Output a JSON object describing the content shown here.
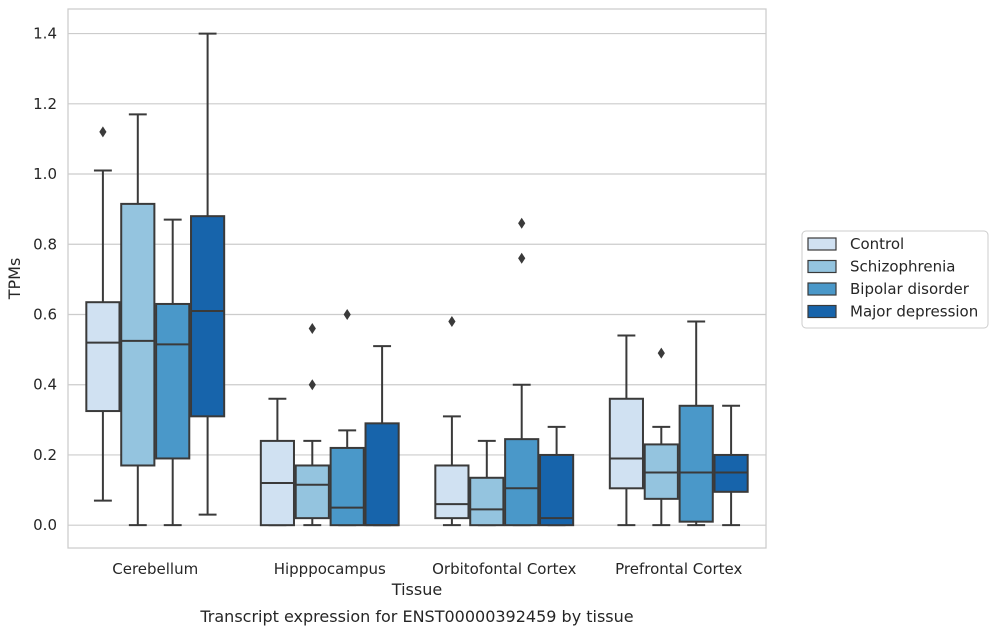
{
  "chart_data": {
    "type": "box",
    "caption": "Transcript expression for ENST00000392459 by tissue",
    "xlabel": "Tissue",
    "ylabel": "TPMs",
    "ylim": [
      -0.065,
      1.47
    ],
    "yticks": [
      "0.0",
      "0.2",
      "0.4",
      "0.6",
      "0.8",
      "1.0",
      "1.2",
      "1.4"
    ],
    "ytick_values": [
      0,
      0.2,
      0.4,
      0.6,
      0.8,
      1.0,
      1.2,
      1.4
    ],
    "grid": true,
    "legend_position": "right",
    "categories": [
      "Cerebellum",
      "Hipppocampus",
      "Orbitofontal Cortex",
      "Prefrontal Cortex"
    ],
    "series": [
      {
        "name": "Control",
        "color": "#d0e1f2",
        "boxes": [
          {
            "whislo": 0.07,
            "q1": 0.325,
            "med": 0.52,
            "q3": 0.635,
            "whishi": 1.01,
            "fliers": [
              1.12
            ]
          },
          {
            "whislo": 0.0,
            "q1": 0.0,
            "med": 0.12,
            "q3": 0.24,
            "whishi": 0.36,
            "fliers": []
          },
          {
            "whislo": 0.0,
            "q1": 0.02,
            "med": 0.06,
            "q3": 0.17,
            "whishi": 0.31,
            "fliers": [
              0.58
            ]
          },
          {
            "whislo": 0.0,
            "q1": 0.105,
            "med": 0.19,
            "q3": 0.36,
            "whishi": 0.54,
            "fliers": []
          }
        ]
      },
      {
        "name": "Schizophrenia",
        "color": "#94c4df",
        "boxes": [
          {
            "whislo": 0.0,
            "q1": 0.17,
            "med": 0.525,
            "q3": 0.915,
            "whishi": 1.17,
            "fliers": []
          },
          {
            "whislo": 0.0,
            "q1": 0.02,
            "med": 0.115,
            "q3": 0.17,
            "whishi": 0.24,
            "fliers": [
              0.4,
              0.56
            ]
          },
          {
            "whislo": 0.0,
            "q1": 0.0,
            "med": 0.045,
            "q3": 0.135,
            "whishi": 0.24,
            "fliers": []
          },
          {
            "whislo": 0.0,
            "q1": 0.075,
            "med": 0.15,
            "q3": 0.23,
            "whishi": 0.28,
            "fliers": [
              0.49
            ]
          }
        ]
      },
      {
        "name": "Bipolar disorder",
        "color": "#4a98c9",
        "boxes": [
          {
            "whislo": 0.0,
            "q1": 0.19,
            "med": 0.515,
            "q3": 0.63,
            "whishi": 0.87,
            "fliers": []
          },
          {
            "whislo": 0.0,
            "q1": 0.0,
            "med": 0.05,
            "q3": 0.22,
            "whishi": 0.27,
            "fliers": [
              0.6
            ]
          },
          {
            "whislo": 0.0,
            "q1": 0.0,
            "med": 0.105,
            "q3": 0.245,
            "whishi": 0.4,
            "fliers": [
              0.76,
              0.86
            ]
          },
          {
            "whislo": 0.0,
            "q1": 0.01,
            "med": 0.15,
            "q3": 0.34,
            "whishi": 0.58,
            "fliers": []
          }
        ]
      },
      {
        "name": "Major depression",
        "color": "#1764ab",
        "boxes": [
          {
            "whislo": 0.03,
            "q1": 0.31,
            "med": 0.61,
            "q3": 0.88,
            "whishi": 1.4,
            "fliers": []
          },
          {
            "whislo": 0.0,
            "q1": 0.0,
            "med": 0.0,
            "q3": 0.29,
            "whishi": 0.51,
            "fliers": []
          },
          {
            "whislo": 0.0,
            "q1": 0.0,
            "med": 0.02,
            "q3": 0.2,
            "whishi": 0.28,
            "fliers": []
          },
          {
            "whislo": 0.0,
            "q1": 0.095,
            "med": 0.15,
            "q3": 0.2,
            "whishi": 0.34,
            "fliers": []
          }
        ]
      }
    ]
  }
}
